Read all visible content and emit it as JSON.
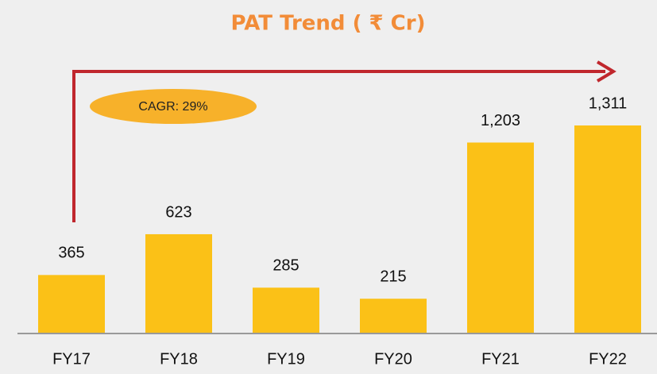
{
  "chart_data": {
    "type": "bar",
    "title": "PAT Trend ( ₹ Cr)",
    "categories": [
      "FY17",
      "FY18",
      "FY19",
      "FY20",
      "FY21",
      "FY22"
    ],
    "values": [
      365,
      623,
      285,
      215,
      1203,
      1311
    ],
    "value_labels": [
      "365",
      "623",
      "285",
      "215",
      "1,203",
      "1,311"
    ],
    "color": "#fbc117",
    "annotation": "CAGR: 29%"
  }
}
